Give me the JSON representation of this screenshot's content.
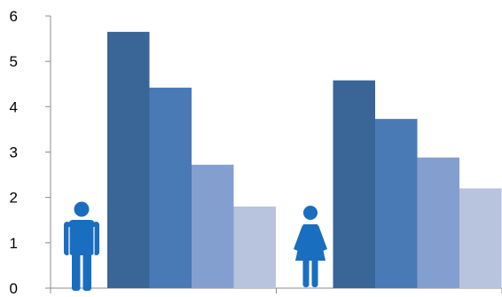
{
  "chart_data": {
    "type": "bar",
    "title": "",
    "xlabel": "",
    "ylabel": "",
    "ylim": [
      0,
      6
    ],
    "yticks": [
      "0",
      "1",
      "2",
      "3",
      "4",
      "5",
      "6"
    ],
    "grid": false,
    "legend": "none",
    "categories": [
      "male",
      "female"
    ],
    "category_icons": [
      "man-icon",
      "woman-icon"
    ],
    "series": [
      {
        "values": [
          5.65,
          4.58
        ],
        "color": "#3A6597"
      },
      {
        "values": [
          4.42,
          3.73
        ],
        "color": "#4A7AB5"
      },
      {
        "values": [
          2.72,
          2.88
        ],
        "color": "#839FD0"
      },
      {
        "values": [
          1.8,
          2.2
        ],
        "color": "#B8C4DE"
      }
    ],
    "icon_color": "#1A6EC0",
    "axis_color": "#8C8C8C"
  }
}
